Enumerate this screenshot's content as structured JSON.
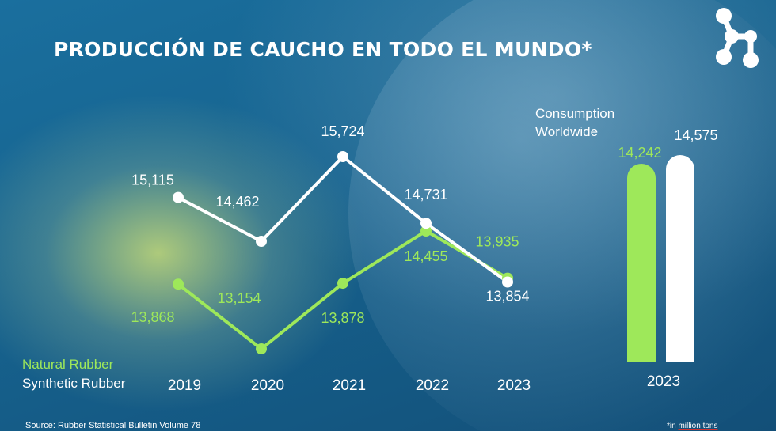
{
  "title": "PRODUCCIÓN DE CAUCHO EN TODO EL MUNDO*",
  "source": "Source: Rubber Statistical Bulletin Volume 78",
  "footnote_prefix": "*in ",
  "footnote_unit": "million tons",
  "legend": {
    "natural": "Natural Rubber",
    "synthetic": "Synthetic Rubber"
  },
  "consumption": {
    "line1": "Consumption",
    "line2": "Worldwide"
  },
  "logo_icon": "share-network-icon",
  "colors": {
    "natural": "#9ee85a",
    "synthetic": "#ffffff",
    "background": "#16638f"
  },
  "chart_data": [
    {
      "type": "line",
      "categories": [
        "2019",
        "2020",
        "2021",
        "2022",
        "2023"
      ],
      "series": [
        {
          "name": "Synthetic Rubber",
          "values": [
            15115,
            14462,
            15724,
            14731,
            13854
          ],
          "labels": [
            "15,115",
            "14,462",
            "15,724",
            "14,731",
            "13,854"
          ]
        },
        {
          "name": "Natural Rubber",
          "values": [
            13868,
            13154,
            13878,
            14455,
            13935
          ],
          "labels": [
            "13,868",
            "13,154",
            "13,878",
            "14,455",
            "13,935"
          ]
        }
      ]
    },
    {
      "type": "bar",
      "categories": [
        "2023"
      ],
      "series": [
        {
          "name": "Natural Rubber",
          "values": [
            14242
          ],
          "label": "14,242"
        },
        {
          "name": "Synthetic Rubber",
          "values": [
            14575
          ],
          "label": "14,575"
        }
      ]
    }
  ]
}
